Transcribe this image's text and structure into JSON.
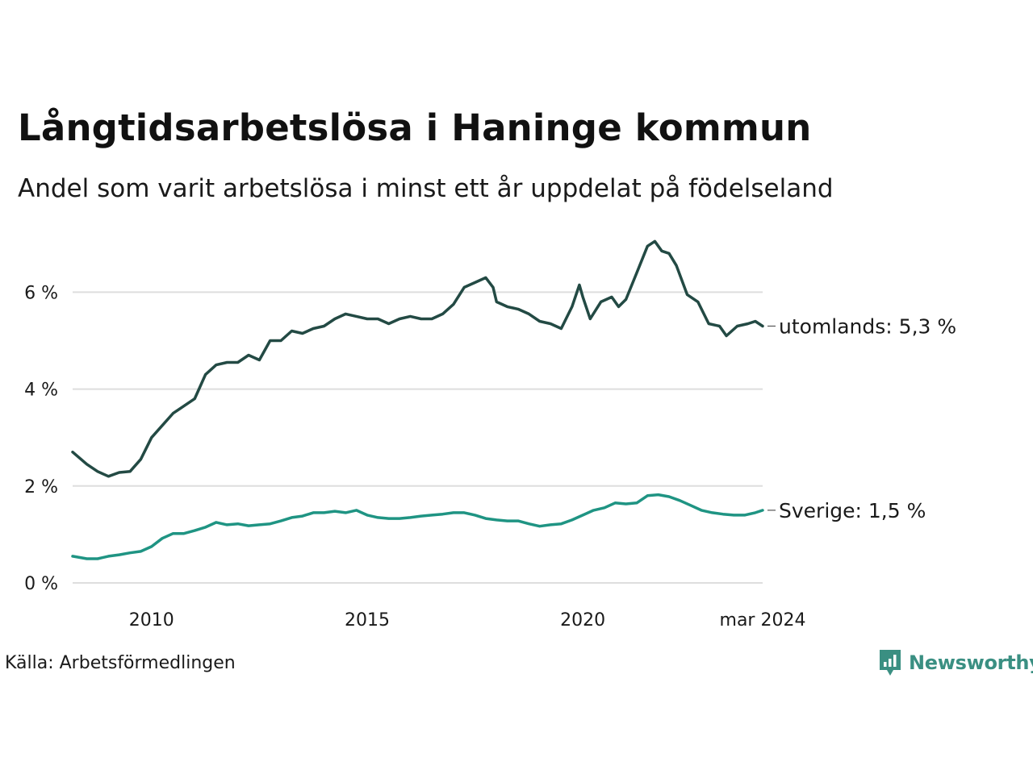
{
  "title": "Långtidsarbetslösa i Haninge kommun",
  "subtitle": "Andel som varit arbetslösa i minst ett år uppdelat på födelseland",
  "source": "Källa: Arbetsförmedlingen",
  "brand": {
    "name": "Newsworthy",
    "color": "#3a8f82"
  },
  "chart_data": {
    "type": "line",
    "title": "Långtidsarbetslösa i Haninge kommun",
    "xlabel": "",
    "ylabel": "",
    "x_range": [
      2008.17,
      2024.17
    ],
    "ylim": [
      0,
      7.2
    ],
    "y_ticks": [
      0,
      2,
      4,
      6
    ],
    "y_tick_labels": [
      "0 %",
      "2 %",
      "4 %",
      "6 %"
    ],
    "x_ticks": [
      2010,
      2015,
      2020,
      2024.17
    ],
    "x_tick_labels": [
      "2010",
      "2015",
      "2020",
      "mar 2024"
    ],
    "grid": true,
    "series": [
      {
        "name": "utomlands",
        "end_label": "utomlands: 5,3 %",
        "color": "#234a44",
        "points": [
          [
            2008.17,
            2.7
          ],
          [
            2008.5,
            2.45
          ],
          [
            2008.75,
            2.3
          ],
          [
            2009.0,
            2.2
          ],
          [
            2009.25,
            2.28
          ],
          [
            2009.5,
            2.3
          ],
          [
            2009.75,
            2.55
          ],
          [
            2010.0,
            3.0
          ],
          [
            2010.25,
            3.25
          ],
          [
            2010.5,
            3.5
          ],
          [
            2010.75,
            3.65
          ],
          [
            2011.0,
            3.8
          ],
          [
            2011.25,
            4.3
          ],
          [
            2011.5,
            4.5
          ],
          [
            2011.75,
            4.55
          ],
          [
            2012.0,
            4.55
          ],
          [
            2012.25,
            4.7
          ],
          [
            2012.5,
            4.6
          ],
          [
            2012.75,
            5.0
          ],
          [
            2013.0,
            5.0
          ],
          [
            2013.25,
            5.2
          ],
          [
            2013.5,
            5.15
          ],
          [
            2013.75,
            5.25
          ],
          [
            2014.0,
            5.3
          ],
          [
            2014.25,
            5.45
          ],
          [
            2014.5,
            5.55
          ],
          [
            2014.75,
            5.5
          ],
          [
            2015.0,
            5.45
          ],
          [
            2015.25,
            5.45
          ],
          [
            2015.5,
            5.35
          ],
          [
            2015.75,
            5.45
          ],
          [
            2016.0,
            5.5
          ],
          [
            2016.25,
            5.45
          ],
          [
            2016.5,
            5.45
          ],
          [
            2016.75,
            5.55
          ],
          [
            2017.0,
            5.75
          ],
          [
            2017.25,
            6.1
          ],
          [
            2017.5,
            6.2
          ],
          [
            2017.75,
            6.3
          ],
          [
            2017.92,
            6.1
          ],
          [
            2018.0,
            5.8
          ],
          [
            2018.25,
            5.7
          ],
          [
            2018.5,
            5.65
          ],
          [
            2018.75,
            5.55
          ],
          [
            2019.0,
            5.4
          ],
          [
            2019.25,
            5.35
          ],
          [
            2019.5,
            5.25
          ],
          [
            2019.75,
            5.7
          ],
          [
            2019.92,
            6.15
          ],
          [
            2020.0,
            5.9
          ],
          [
            2020.17,
            5.45
          ],
          [
            2020.42,
            5.8
          ],
          [
            2020.67,
            5.9
          ],
          [
            2020.83,
            5.7
          ],
          [
            2021.0,
            5.85
          ],
          [
            2021.25,
            6.4
          ],
          [
            2021.5,
            6.95
          ],
          [
            2021.67,
            7.05
          ],
          [
            2021.83,
            6.85
          ],
          [
            2022.0,
            6.8
          ],
          [
            2022.17,
            6.55
          ],
          [
            2022.42,
            5.95
          ],
          [
            2022.67,
            5.8
          ],
          [
            2022.92,
            5.35
          ],
          [
            2023.17,
            5.3
          ],
          [
            2023.33,
            5.1
          ],
          [
            2023.58,
            5.3
          ],
          [
            2023.83,
            5.35
          ],
          [
            2024.0,
            5.4
          ],
          [
            2024.17,
            5.3
          ]
        ]
      },
      {
        "name": "Sverige",
        "end_label": "Sverige: 1,5 %",
        "color": "#1f9483",
        "points": [
          [
            2008.17,
            0.55
          ],
          [
            2008.5,
            0.5
          ],
          [
            2008.75,
            0.5
          ],
          [
            2009.0,
            0.55
          ],
          [
            2009.25,
            0.58
          ],
          [
            2009.5,
            0.62
          ],
          [
            2009.75,
            0.65
          ],
          [
            2010.0,
            0.75
          ],
          [
            2010.25,
            0.92
          ],
          [
            2010.5,
            1.02
          ],
          [
            2010.75,
            1.02
          ],
          [
            2011.0,
            1.08
          ],
          [
            2011.25,
            1.15
          ],
          [
            2011.5,
            1.25
          ],
          [
            2011.75,
            1.2
          ],
          [
            2012.0,
            1.22
          ],
          [
            2012.25,
            1.18
          ],
          [
            2012.5,
            1.2
          ],
          [
            2012.75,
            1.22
          ],
          [
            2013.0,
            1.28
          ],
          [
            2013.25,
            1.35
          ],
          [
            2013.5,
            1.38
          ],
          [
            2013.75,
            1.45
          ],
          [
            2014.0,
            1.45
          ],
          [
            2014.25,
            1.48
          ],
          [
            2014.5,
            1.45
          ],
          [
            2014.75,
            1.5
          ],
          [
            2015.0,
            1.4
          ],
          [
            2015.25,
            1.35
          ],
          [
            2015.5,
            1.33
          ],
          [
            2015.75,
            1.33
          ],
          [
            2016.0,
            1.35
          ],
          [
            2016.25,
            1.38
          ],
          [
            2016.5,
            1.4
          ],
          [
            2016.75,
            1.42
          ],
          [
            2017.0,
            1.45
          ],
          [
            2017.25,
            1.45
          ],
          [
            2017.5,
            1.4
          ],
          [
            2017.75,
            1.33
          ],
          [
            2018.0,
            1.3
          ],
          [
            2018.25,
            1.28
          ],
          [
            2018.5,
            1.28
          ],
          [
            2018.75,
            1.22
          ],
          [
            2019.0,
            1.17
          ],
          [
            2019.25,
            1.2
          ],
          [
            2019.5,
            1.22
          ],
          [
            2019.75,
            1.3
          ],
          [
            2020.0,
            1.4
          ],
          [
            2020.25,
            1.5
          ],
          [
            2020.5,
            1.55
          ],
          [
            2020.75,
            1.65
          ],
          [
            2021.0,
            1.63
          ],
          [
            2021.25,
            1.65
          ],
          [
            2021.5,
            1.8
          ],
          [
            2021.75,
            1.82
          ],
          [
            2022.0,
            1.78
          ],
          [
            2022.25,
            1.7
          ],
          [
            2022.5,
            1.6
          ],
          [
            2022.75,
            1.5
          ],
          [
            2023.0,
            1.45
          ],
          [
            2023.25,
            1.42
          ],
          [
            2023.5,
            1.4
          ],
          [
            2023.75,
            1.4
          ],
          [
            2024.0,
            1.45
          ],
          [
            2024.17,
            1.5
          ]
        ]
      }
    ]
  }
}
